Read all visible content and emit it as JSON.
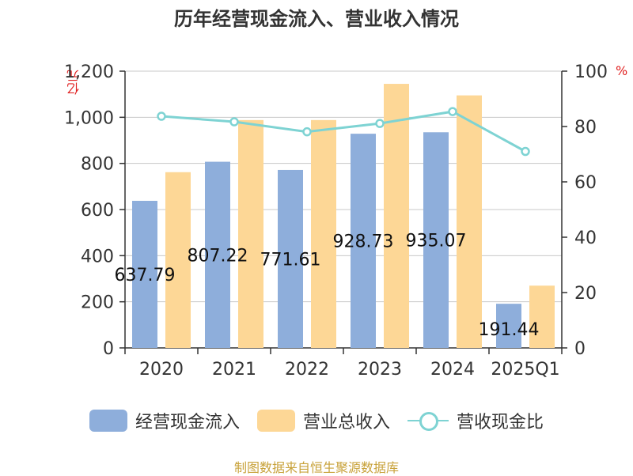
{
  "chart_data": {
    "type": "bar",
    "title": "历年经营现金流入、营业收入情况",
    "categories": [
      "2020",
      "2021",
      "2022",
      "2023",
      "2024",
      "2025Q1"
    ],
    "series": [
      {
        "name": "经营现金流入",
        "type": "bar",
        "axis": "left",
        "values": [
          637.79,
          807.22,
          771.61,
          928.73,
          935.07,
          191.44
        ],
        "labels": [
          "637.79",
          "807.22",
          "771.61",
          "928.73",
          "935.07",
          "191.44"
        ],
        "color": "#8eaedb"
      },
      {
        "name": "营业总收入",
        "type": "bar",
        "axis": "left",
        "values": [
          762,
          988,
          988,
          1145,
          1095,
          270
        ],
        "color": "#fdd796"
      },
      {
        "name": "营收现金比",
        "type": "line",
        "axis": "right",
        "values": [
          83.7,
          81.7,
          78.1,
          81.1,
          85.4,
          71.0
        ],
        "color": "#7ed3d3"
      }
    ],
    "ylabel_left": "亿元",
    "ylabel_right": "%",
    "ylim_left": [
      0,
      1200
    ],
    "ylim_right": [
      0,
      100
    ],
    "yticks_left": [
      "0",
      "200",
      "400",
      "600",
      "800",
      "1,000",
      "1,200"
    ],
    "yticks_right": [
      "0",
      "20",
      "40",
      "60",
      "80",
      "100"
    ],
    "grid": true,
    "legend_position": "bottom"
  },
  "source": "制图数据来自恒生聚源数据库"
}
